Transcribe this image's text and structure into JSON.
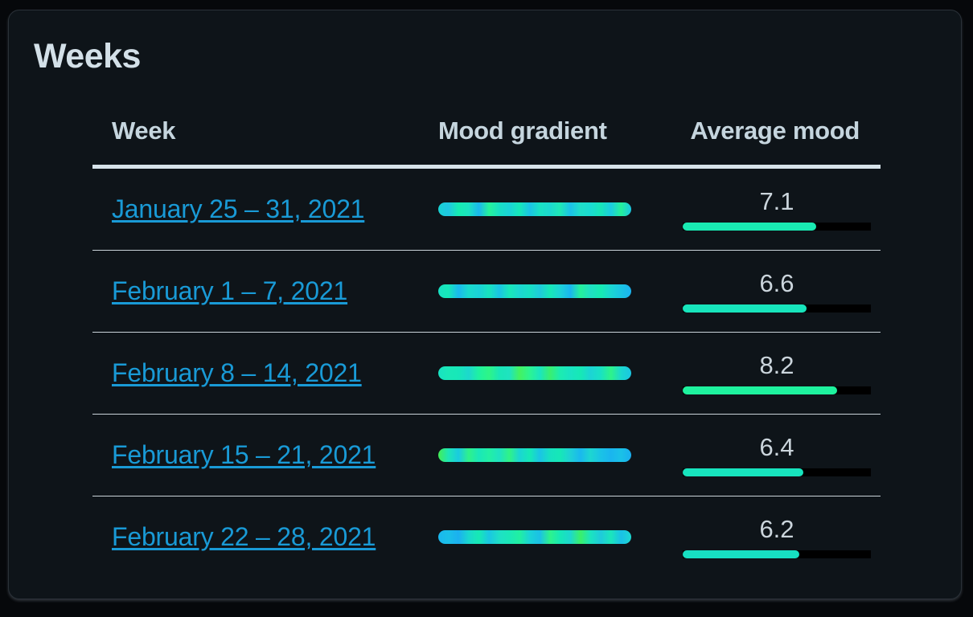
{
  "card": {
    "title": "Weeks"
  },
  "table": {
    "headers": {
      "week": "Week",
      "gradient": "Mood gradient",
      "average": "Average mood"
    },
    "rows": [
      {
        "week": "January 25 – 31, 2021",
        "average": "7.1",
        "average_value": 7.1,
        "fill_fraction": 0.71,
        "fill_color": "#19eab2",
        "gradient_colors": [
          "#17d3d2",
          "#1fc6e2",
          "#16ecb0",
          "#1be3c1",
          "#1ab7ee",
          "#26f39a",
          "#18e0c3",
          "#1ad3d8",
          "#16e9b7",
          "#1ac2e6",
          "#19e2c2",
          "#1cd8d0",
          "#1fe8b5",
          "#1bc1e9",
          "#1fdfc7",
          "#1adbd2",
          "#17e6b7",
          "#1bcbe1",
          "#25f099",
          "#1ac6e4"
        ]
      },
      {
        "week": "February 1 – 7, 2021",
        "average": "6.6",
        "average_value": 6.6,
        "fill_fraction": 0.66,
        "fill_color": "#17e5bc",
        "gradient_colors": [
          "#18e0c3",
          "#16e8b8",
          "#1ab9ee",
          "#19dccb",
          "#1ad1d8",
          "#18e4bd",
          "#1ac3e5",
          "#19e8b8",
          "#1cd6d2",
          "#17e0c2",
          "#1fcadb",
          "#17e8b6",
          "#1cd3d6",
          "#1ab5ef",
          "#25f19b",
          "#1fe0c5",
          "#16ebb1",
          "#1ad6d2",
          "#1ac4e3",
          "#1bb3f0"
        ]
      },
      {
        "week": "February 8 – 14, 2021",
        "average": "8.2",
        "average_value": 8.2,
        "fill_fraction": 0.82,
        "fill_color": "#1ef29e",
        "gradient_colors": [
          "#18e2c2",
          "#1ae9b8",
          "#17e7b9",
          "#1dd8cd",
          "#1ff2a0",
          "#2ef587",
          "#1ae6b7",
          "#1fe3c0",
          "#44f260",
          "#2cf491",
          "#1be5bf",
          "#39ef70",
          "#1cecb0",
          "#1ae3c3",
          "#16e9b5",
          "#1cd4d5",
          "#19e2c3",
          "#2ef38a",
          "#1bd8cf",
          "#1bc5e3"
        ]
      },
      {
        "week": "February 15 – 21, 2021",
        "average": "6.4",
        "average_value": 6.4,
        "fill_fraction": 0.64,
        "fill_color": "#17e4be",
        "gradient_colors": [
          "#43ee55",
          "#1ee6b6",
          "#1acbe0",
          "#2ff28a",
          "#1ae7ba",
          "#22f0a4",
          "#1fe2c2",
          "#30f386",
          "#1bd5d4",
          "#16e9b6",
          "#1bc4e5",
          "#17e1c1",
          "#16e8b7",
          "#1fd0d6",
          "#1ab8ee",
          "#1dd6d1",
          "#1ac3e6",
          "#1ab5ef",
          "#1ac2e7",
          "#1aaef0"
        ]
      },
      {
        "week": "February 22 – 28, 2021",
        "average": "6.2",
        "average_value": 6.2,
        "fill_fraction": 0.62,
        "fill_color": "#17e0c2",
        "gradient_colors": [
          "#1ab7ee",
          "#1ac0e8",
          "#1bb0f0",
          "#1ad8ce",
          "#16eab4",
          "#1ac6e3",
          "#1fe0c6",
          "#1be8b8",
          "#21f0a1",
          "#1ad3d7",
          "#1bc0e6",
          "#2ef38c",
          "#16e8b7",
          "#1dd7ce",
          "#3af06a",
          "#1be4bf",
          "#1fcadb",
          "#1be6bb",
          "#1ac1e7",
          "#1dd8d0"
        ]
      }
    ]
  }
}
